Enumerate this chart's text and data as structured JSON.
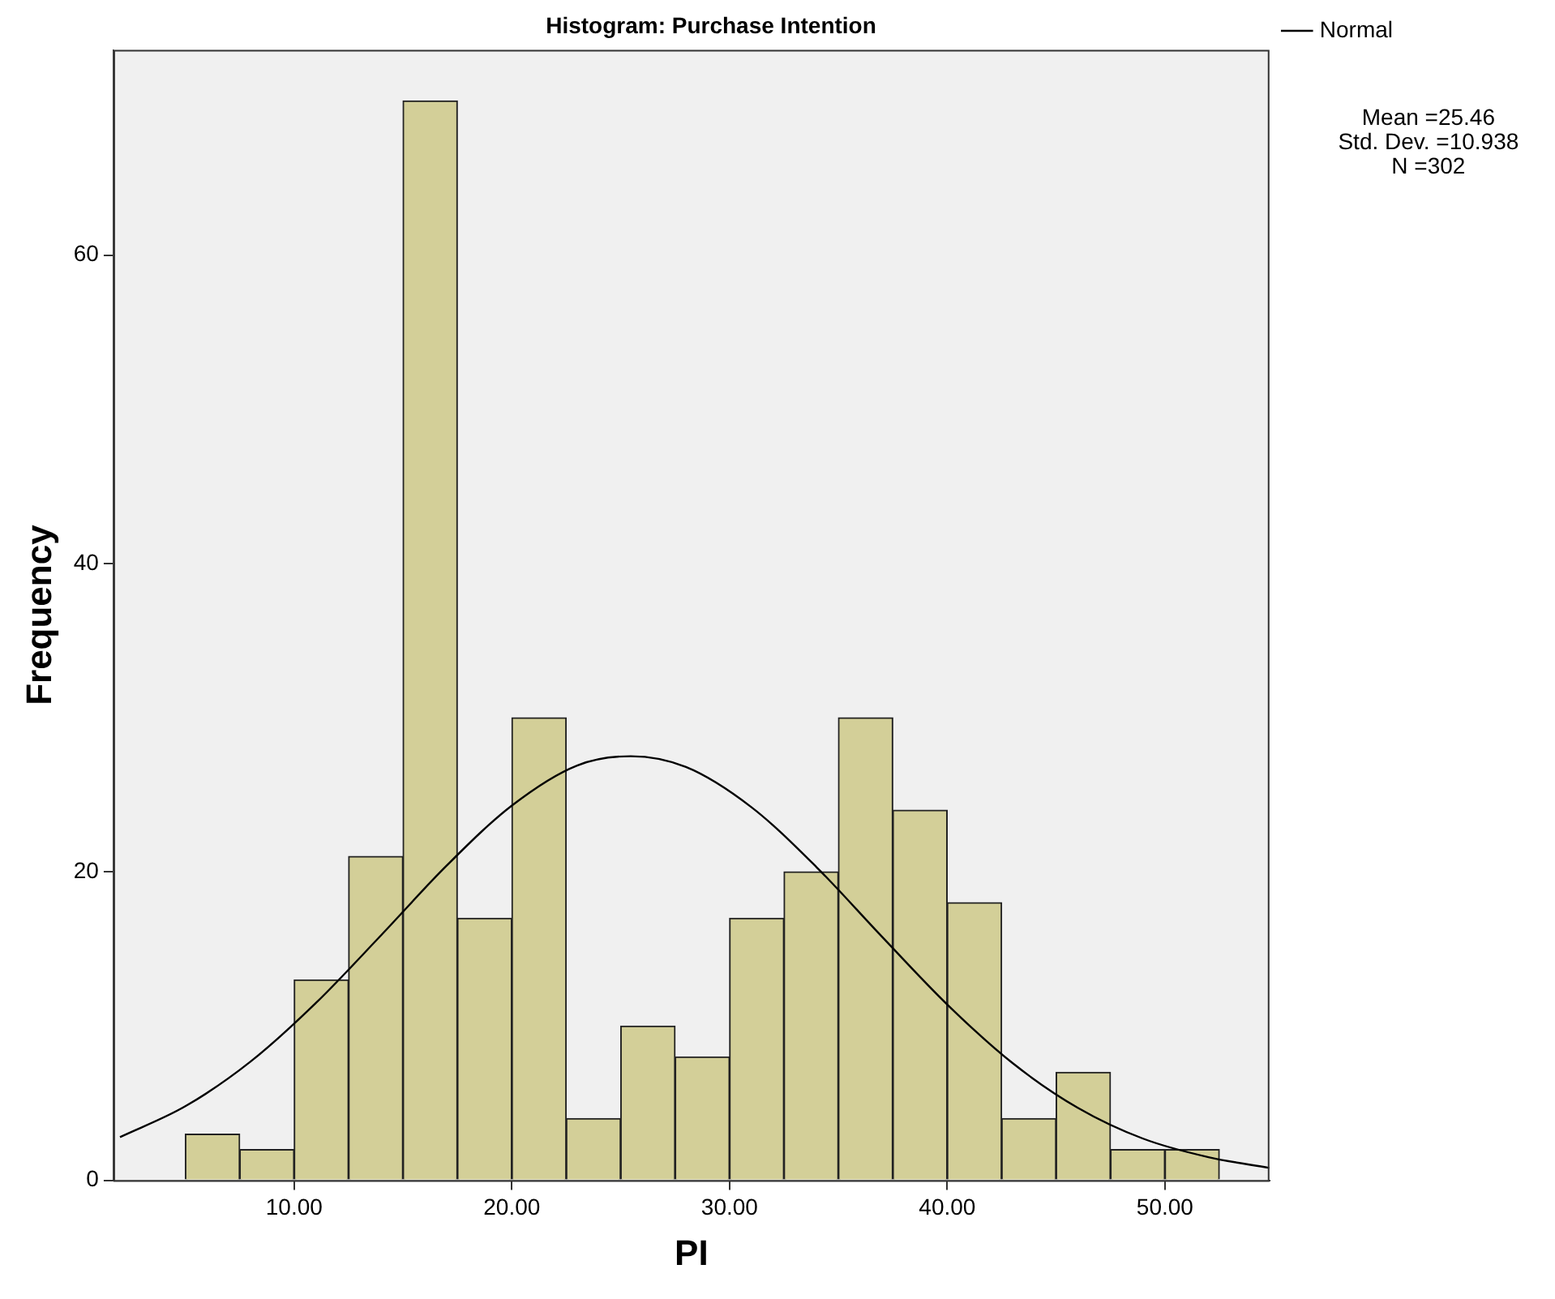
{
  "chart_data": {
    "type": "histogram",
    "title": "Histogram: Purchase Intention",
    "xlabel": "PI",
    "ylabel": "Frequency",
    "bins": [
      5,
      7.5,
      10,
      12.5,
      15,
      17.5,
      20,
      22.5,
      25,
      27.5,
      30,
      32.5,
      35,
      37.5,
      40,
      42.5,
      45,
      47.5,
      50,
      52.5
    ],
    "values": [
      3,
      2,
      13,
      21,
      70,
      17,
      30,
      4,
      10,
      8,
      17,
      20,
      30,
      24,
      18,
      4,
      7,
      2,
      2
    ],
    "color": "#d3cf98",
    "series": [
      {
        "name": "Normal",
        "type": "line",
        "color": "#000000",
        "x": [
          2,
          5,
          8,
          11,
          14,
          17,
          20,
          23,
          25.46,
          28,
          31,
          34,
          37,
          40,
          43,
          46,
          49,
          52,
          54.8
        ],
        "values": [
          2.8,
          4.8,
          7.7,
          11.5,
          15.9,
          20.4,
          24.3,
          26.9,
          27.5,
          26.8,
          24.2,
          20.3,
          15.8,
          11.4,
          7.6,
          4.7,
          2.7,
          1.5,
          0.8
        ]
      }
    ],
    "xlim": [
      1.7,
      54.8
    ],
    "ylim": [
      0,
      73.3
    ],
    "xticks": [
      {
        "value": 10,
        "label": "10.00"
      },
      {
        "value": 20,
        "label": "20.00"
      },
      {
        "value": 30,
        "label": "30.00"
      },
      {
        "value": 40,
        "label": "40.00"
      },
      {
        "value": 50,
        "label": "50.00"
      }
    ],
    "yticks": [
      0,
      20,
      40,
      60
    ],
    "grid": false,
    "legend": "top right",
    "marker": "none",
    "line_style": "solid",
    "annotations": [
      "Mean =25.46",
      "Std. Dev. =10.938",
      "N =302"
    ]
  }
}
